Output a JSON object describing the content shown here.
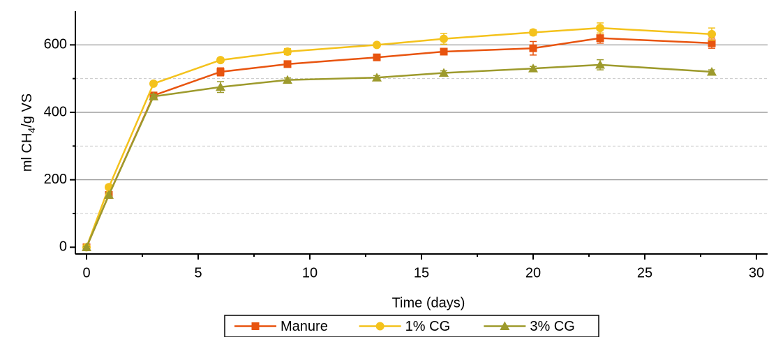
{
  "chart_data": {
    "type": "line",
    "x_label": "Time (days)",
    "y_label": [
      "ml CH",
      "4",
      "/g VS"
    ],
    "x": [
      0,
      1,
      3,
      6,
      9,
      13,
      16,
      20,
      23,
      28
    ],
    "series": [
      {
        "name": "Manure",
        "color": "#e8540f",
        "marker": "square",
        "values": [
          0,
          155,
          450,
          520,
          543,
          563,
          580,
          590,
          620,
          605
        ],
        "errors": [
          3,
          6,
          6,
          12,
          6,
          6,
          8,
          20,
          15,
          15
        ]
      },
      {
        "name": "1% CG",
        "color": "#f4c21c",
        "marker": "circle",
        "values": [
          0,
          178,
          485,
          555,
          580,
          600,
          618,
          637,
          650,
          632
        ],
        "errors": [
          3,
          6,
          6,
          6,
          9,
          5,
          16,
          8,
          15,
          18
        ]
      },
      {
        "name": "3% CG",
        "color": "#9d9a2c",
        "marker": "triangle",
        "values": [
          0,
          155,
          447,
          475,
          496,
          503,
          517,
          530,
          541,
          520
        ],
        "errors": [
          3,
          6,
          6,
          16,
          6,
          6,
          6,
          6,
          15,
          6
        ]
      }
    ],
    "xlim": [
      -0.5,
      30.5
    ],
    "ylim": [
      -20,
      700
    ],
    "xticks": [
      0,
      5,
      10,
      15,
      20,
      25,
      30
    ],
    "yticks": [
      0,
      200,
      400,
      600
    ],
    "x_minor_ticks": [
      2.5,
      7.5,
      12.5,
      17.5,
      22.5,
      27.5
    ],
    "y_minor_ticks": [
      100,
      300,
      500
    ],
    "grid": true,
    "legend": "bottom"
  }
}
